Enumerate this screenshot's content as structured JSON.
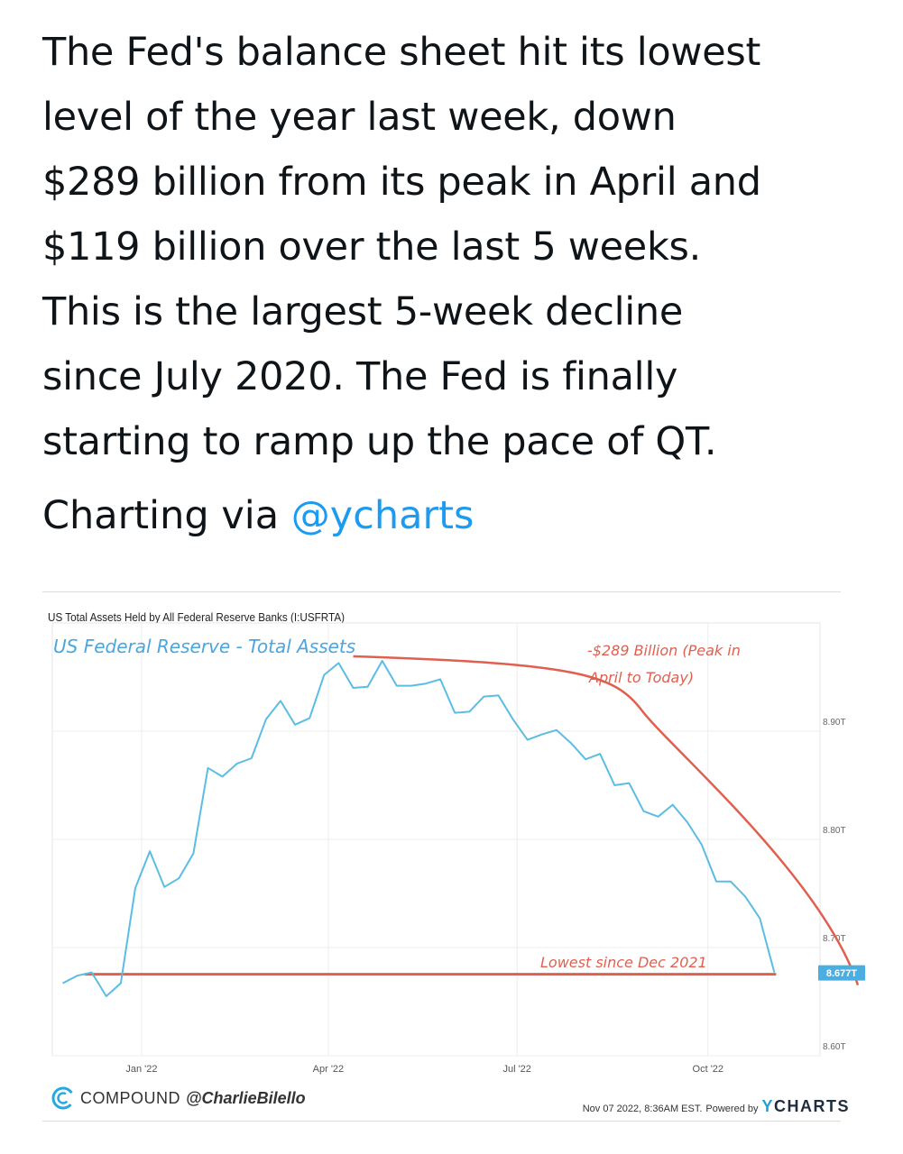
{
  "tweet": {
    "lines": [
      "The Fed's balance sheet hit its lowest",
      "level of the year last week, down",
      "$289 billion from its peak in April and",
      "$119 billion over the last 5 weeks.",
      "This is the largest 5-week decline",
      "since July 2020. The Fed is finally",
      "starting to ramp up the pace of QT."
    ],
    "credit_prefix": "Charting via ",
    "credit_mention": "@ycharts"
  },
  "chart_data": {
    "type": "line",
    "title": "US Total Assets Held by All Federal Reserve Banks (I:USFRTA)",
    "series": [
      {
        "name": "",
        "color": "#5bbde4",
        "x": [
          "2021-11-24",
          "2021-12-01",
          "2021-12-08",
          "2021-12-15",
          "2021-12-22",
          "2021-12-29",
          "2022-01-05",
          "2022-01-12",
          "2022-01-19",
          "2022-01-26",
          "2022-02-02",
          "2022-02-09",
          "2022-02-16",
          "2022-02-23",
          "2022-03-02",
          "2022-03-09",
          "2022-03-16",
          "2022-03-23",
          "2022-03-30",
          "2022-04-06",
          "2022-04-13",
          "2022-04-20",
          "2022-04-27",
          "2022-05-04",
          "2022-05-11",
          "2022-05-18",
          "2022-05-25",
          "2022-06-01",
          "2022-06-08",
          "2022-06-15",
          "2022-06-22",
          "2022-06-29",
          "2022-07-06",
          "2022-07-13",
          "2022-07-20",
          "2022-07-27",
          "2022-08-03",
          "2022-08-10",
          "2022-08-17",
          "2022-08-24",
          "2022-08-31",
          "2022-09-07",
          "2022-09-14",
          "2022-09-21",
          "2022-09-28",
          "2022-10-05",
          "2022-10-12",
          "2022-10-19",
          "2022-10-26",
          "2022-11-02"
        ],
        "values": [
          8.667,
          8.674,
          8.677,
          8.655,
          8.667,
          8.755,
          8.789,
          8.756,
          8.764,
          8.787,
          8.866,
          8.858,
          8.87,
          8.875,
          8.911,
          8.928,
          8.906,
          8.912,
          8.952,
          8.963,
          8.94,
          8.941,
          8.965,
          8.942,
          8.942,
          8.944,
          8.948,
          8.917,
          8.918,
          8.932,
          8.933,
          8.911,
          8.892,
          8.897,
          8.901,
          8.889,
          8.874,
          8.879,
          8.85,
          8.852,
          8.826,
          8.821,
          8.832,
          8.816,
          8.795,
          8.761,
          8.761,
          8.747,
          8.727,
          8.677
        ]
      }
    ],
    "x_ticks": [
      "Jan '22",
      "Apr '22",
      "Jul '22",
      "Oct '22"
    ],
    "y_ticks": [
      "8.60T",
      "8.70T",
      "8.80T",
      "8.90T"
    ],
    "ylim": [
      8.6,
      9.0
    ],
    "last_value_label": "8.677T",
    "grid": true,
    "annotations": {
      "series_label": "US Federal Reserve - Total Assets",
      "peak_note_line1": "-$289 Billion (Peak in",
      "peak_note_line2": "April to Today)",
      "low_note": "Lowest since Dec 2021",
      "color": "#e06050"
    }
  },
  "footer": {
    "brand": "COMPOUND",
    "handle": "@CharlieBilello",
    "timestamp": "Nov 07 2022, 8:36AM EST.",
    "powered_by": "Powered by",
    "ycharts_y": "Y",
    "ycharts_rest": "CHARTS"
  }
}
